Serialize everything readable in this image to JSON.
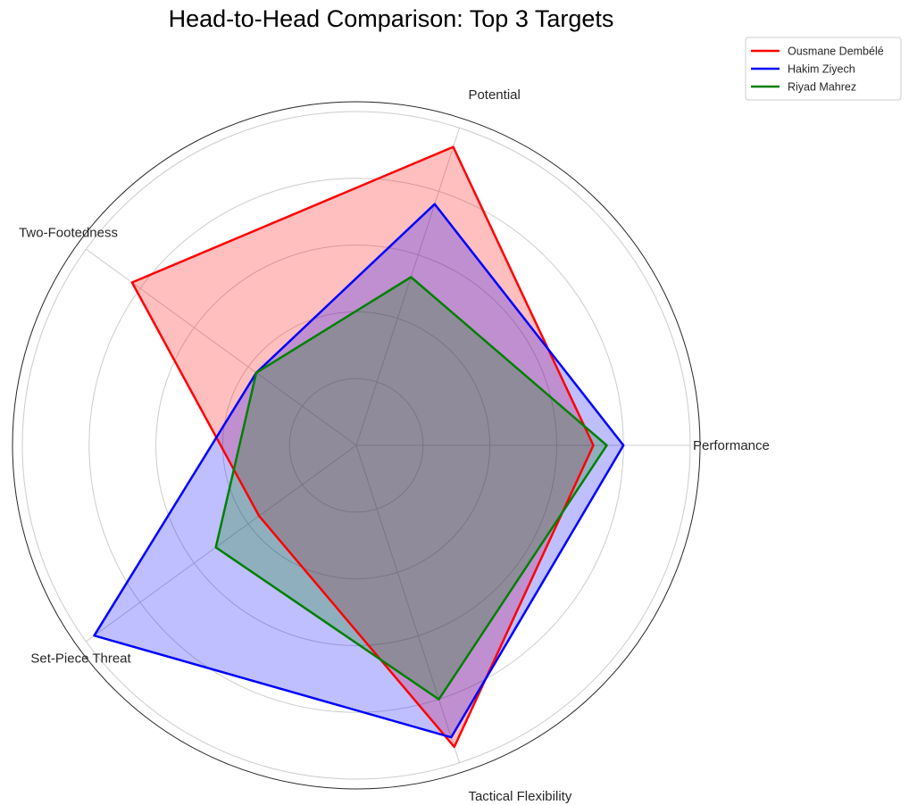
{
  "chart_data": {
    "type": "radar",
    "title": "Head-to-Head Comparison: Top 3 Targets",
    "categories": [
      "Performance",
      "Potential",
      "Two-Footedness",
      "Set-Piece Threat",
      "Tactical Flexibility"
    ],
    "r_max": 5,
    "r_ticks": [
      1,
      2,
      3,
      4,
      5
    ],
    "grid": true,
    "tick_labels_shown": false,
    "legend_position": "top-right",
    "series": [
      {
        "name": "Ousmane Dembélé",
        "color": "#ff0000",
        "values": [
          3.55,
          4.7,
          4.15,
          1.8,
          4.75
        ]
      },
      {
        "name": "Hakim Ziyech",
        "color": "#0000ff",
        "values": [
          4.0,
          3.8,
          1.85,
          4.85,
          4.6
        ]
      },
      {
        "name": "Riyad Mahrez",
        "color": "#008000",
        "values": [
          3.75,
          2.65,
          1.85,
          2.6,
          4.0
        ]
      }
    ]
  }
}
